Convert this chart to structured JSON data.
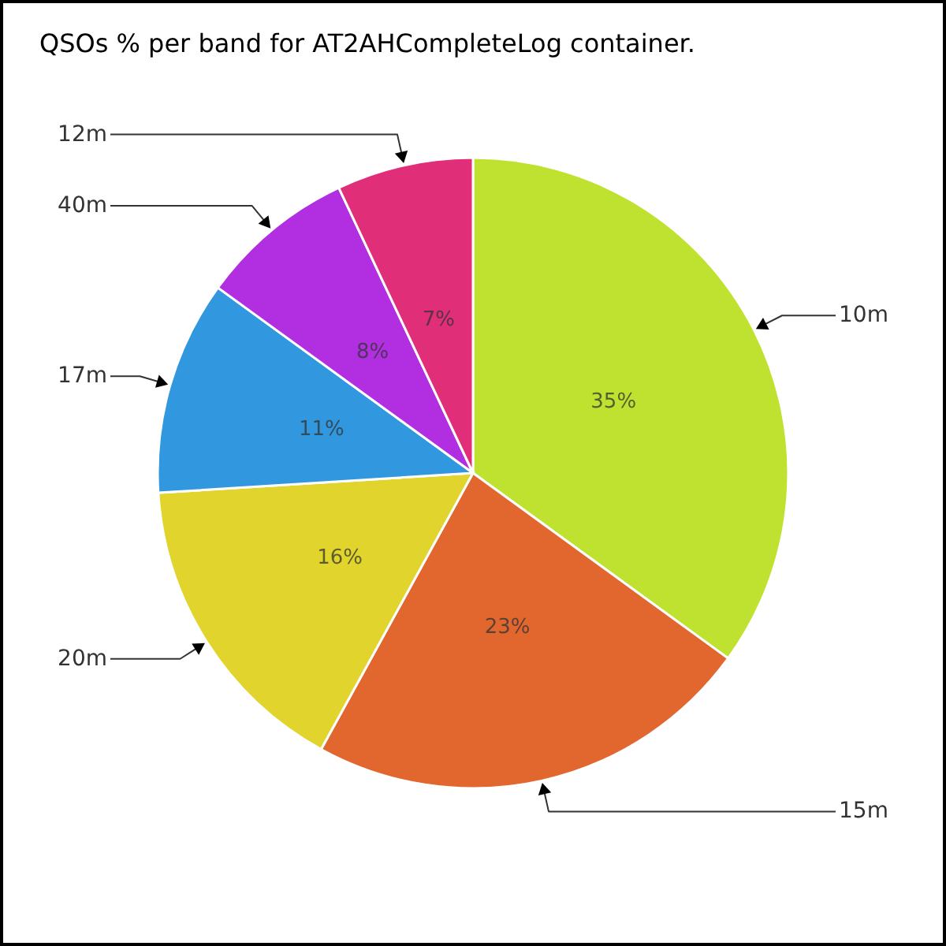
{
  "chart_data": {
    "type": "pie",
    "title": "QSOs % per band for AT2AHCompleteLog container.",
    "categories": [
      "10m",
      "15m",
      "20m",
      "17m",
      "40m",
      "12m"
    ],
    "values": [
      35,
      23,
      16,
      11,
      8,
      7
    ],
    "colors": [
      "#bee22f",
      "#e2672f",
      "#e1d42d",
      "#3198e0",
      "#b22fe1",
      "#e02f78"
    ],
    "value_labels": [
      "35%",
      "23%",
      "16%",
      "11%",
      "8%",
      "7%"
    ]
  }
}
